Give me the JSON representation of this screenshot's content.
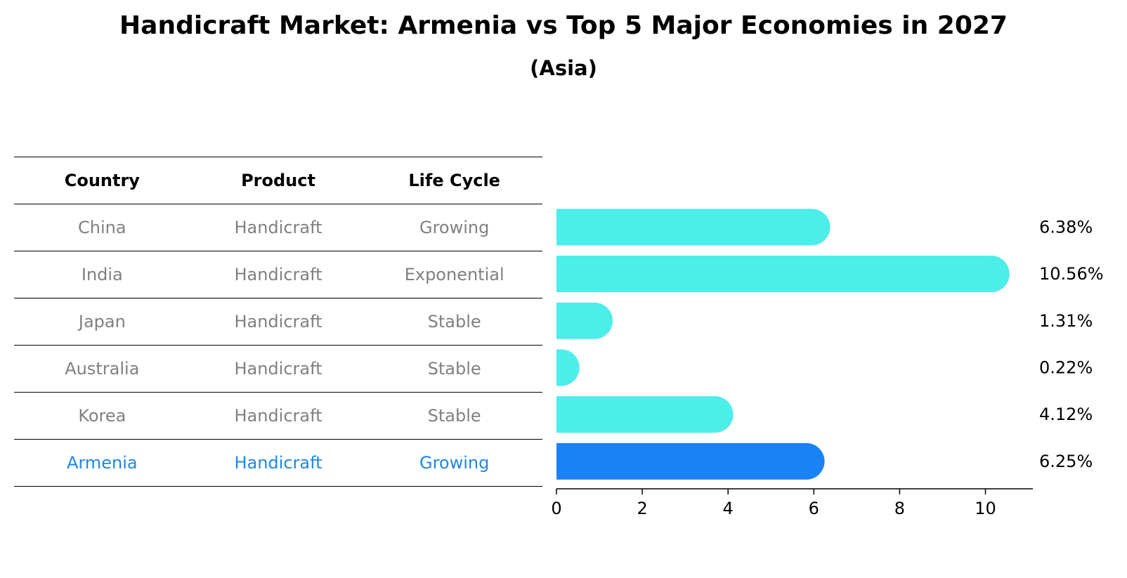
{
  "chart_data": {
    "type": "bar",
    "orientation": "horizontal",
    "title": "Handicraft Market: Armenia vs Top 5 Major Economies in 2027",
    "subtitle": "(Asia)",
    "categories": [
      "China",
      "India",
      "Japan",
      "Australia",
      "Korea",
      "Armenia"
    ],
    "values": [
      6.38,
      10.56,
      1.31,
      0.22,
      4.12,
      6.25
    ],
    "value_labels": [
      "6.38%",
      "10.56%",
      "1.31%",
      "0.22%",
      "4.12%",
      "6.25%"
    ],
    "highlight": "Armenia",
    "xlim": [
      0,
      11.1
    ],
    "xticks": [
      "0",
      "2",
      "4",
      "6",
      "8",
      "10"
    ],
    "colors": {
      "default": "#4dede9",
      "highlight": "#1a82f5",
      "highlight_text": "#1e88e5",
      "muted_text": "#808080"
    }
  },
  "table": {
    "headers": [
      "Country",
      "Product",
      "Life Cycle"
    ],
    "rows": [
      [
        "China",
        "Handicraft",
        "Growing"
      ],
      [
        "India",
        "Handicraft",
        "Exponential"
      ],
      [
        "Japan",
        "Handicraft",
        "Stable"
      ],
      [
        "Australia",
        "Handicraft",
        "Stable"
      ],
      [
        "Korea",
        "Handicraft",
        "Stable"
      ],
      [
        "Armenia",
        "Handicraft",
        "Growing"
      ]
    ]
  }
}
